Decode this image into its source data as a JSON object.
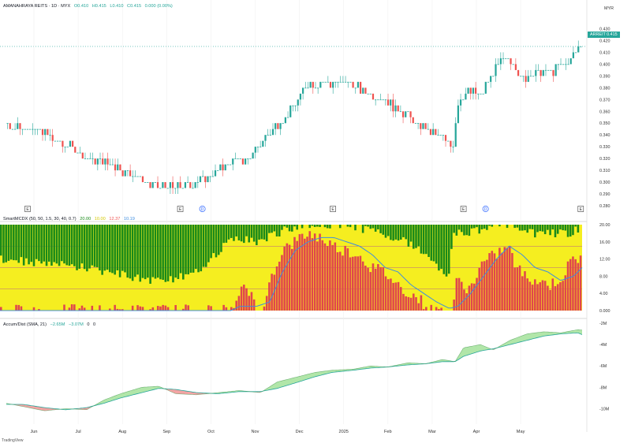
{
  "header": {
    "symbol": "AMANAHRAYA REITS · 1D · MYX",
    "open": "O0.410",
    "high": "H0.415",
    "low": "L0.410",
    "close": "C0.415",
    "change": "0.000 (0.00%)"
  },
  "currency": "MYR",
  "price_badge": {
    "ticker": "ARREIT",
    "value": "0.415"
  },
  "footer_logo": "TradingView",
  "colors": {
    "up": "#26a69a",
    "down": "#ef5350",
    "green_band": "#1a8a1a",
    "yellow_band": "#f5ee20",
    "red_bar": "#e0474c",
    "signal": "#3d8de0",
    "accum_up": "#a8e3a0",
    "accum_down": "#f29a9a"
  },
  "chart_data": [
    {
      "type": "candlestick",
      "ylim": [
        0.28,
        0.43
      ],
      "y_ticks": [
        "0.430",
        "0.420",
        "0.410",
        "0.400",
        "0.390",
        "0.380",
        "0.370",
        "0.360",
        "0.350",
        "0.340",
        "0.330",
        "0.320",
        "0.310",
        "0.300",
        "0.290",
        "0.280"
      ],
      "x_ticks": [
        "Jun",
        "Jul",
        "Aug",
        "Sep",
        "Oct",
        "Nov",
        "Dec",
        "2025",
        "Feb",
        "Mar",
        "Apr",
        "May"
      ],
      "last_price": 0.415,
      "event_markers": [
        {
          "label": "E",
          "month_index": 0.0
        },
        {
          "label": "E",
          "month_index": 3.45
        },
        {
          "label": "D",
          "month_index": 3.95
        },
        {
          "label": "E",
          "month_index": 6.9
        },
        {
          "label": "E",
          "month_index": 9.85
        },
        {
          "label": "D",
          "month_index": 10.35
        },
        {
          "label": "E",
          "month_index": 12.5
        }
      ],
      "close_path": [
        [
          0.0,
          0.349
        ],
        [
          0.3,
          0.347
        ],
        [
          0.6,
          0.345
        ],
        [
          0.9,
          0.342
        ],
        [
          1.2,
          0.333
        ],
        [
          1.5,
          0.33
        ],
        [
          1.8,
          0.32
        ],
        [
          2.1,
          0.318
        ],
        [
          2.4,
          0.317
        ],
        [
          2.7,
          0.31
        ],
        [
          3.0,
          0.305
        ],
        [
          3.3,
          0.298
        ],
        [
          3.6,
          0.296
        ],
        [
          3.9,
          0.296
        ],
        [
          4.2,
          0.296
        ],
        [
          4.5,
          0.3
        ],
        [
          4.8,
          0.306
        ],
        [
          5.1,
          0.312
        ],
        [
          5.4,
          0.32
        ],
        [
          5.7,
          0.318
        ],
        [
          6.0,
          0.332
        ],
        [
          6.3,
          0.345
        ],
        [
          6.6,
          0.355
        ],
        [
          6.9,
          0.372
        ],
        [
          7.2,
          0.385
        ],
        [
          7.5,
          0.383
        ],
        [
          7.8,
          0.384
        ],
        [
          8.1,
          0.384
        ],
        [
          8.4,
          0.378
        ],
        [
          8.7,
          0.372
        ],
        [
          9.0,
          0.368
        ],
        [
          9.3,
          0.362
        ],
        [
          9.6,
          0.352
        ],
        [
          9.9,
          0.345
        ],
        [
          10.2,
          0.34
        ],
        [
          10.5,
          0.332
        ],
        [
          10.6,
          0.33
        ],
        [
          10.65,
          0.366
        ],
        [
          10.9,
          0.378
        ],
        [
          11.2,
          0.372
        ],
        [
          11.5,
          0.392
        ],
        [
          11.8,
          0.405
        ],
        [
          12.0,
          0.402
        ],
        [
          12.2,
          0.385
        ],
        [
          12.4,
          0.392
        ],
        [
          12.7,
          0.394
        ],
        [
          13.0,
          0.395
        ],
        [
          13.3,
          0.402
        ],
        [
          13.6,
          0.415
        ]
      ]
    },
    {
      "type": "bar",
      "title": "SmartMCDX (50, 50, 1.5, 30, 40, 0.7)",
      "legend_values": [
        "20.00",
        "10.00",
        "12.37",
        "10.19"
      ],
      "ylim": [
        0,
        20
      ],
      "y_ticks": [
        "20.00",
        "16.00",
        "12.00",
        "8.00",
        "4.00",
        "0.000"
      ],
      "reference_lines": [
        15,
        10,
        5
      ],
      "green_profile": [
        [
          0.0,
          8
        ],
        [
          1.0,
          9
        ],
        [
          2.0,
          10
        ],
        [
          3.0,
          12
        ],
        [
          3.5,
          13
        ],
        [
          4.5,
          12
        ],
        [
          5.0,
          7
        ],
        [
          5.5,
          3
        ],
        [
          6.0,
          4
        ],
        [
          6.5,
          2
        ],
        [
          7.0,
          0
        ],
        [
          7.5,
          0
        ],
        [
          8.0,
          0
        ],
        [
          8.5,
          1
        ],
        [
          9.0,
          2
        ],
        [
          9.5,
          4
        ],
        [
          10.0,
          7
        ],
        [
          10.5,
          12
        ],
        [
          10.6,
          2
        ],
        [
          11.0,
          2
        ],
        [
          11.5,
          0
        ],
        [
          12.0,
          0
        ],
        [
          12.2,
          2
        ],
        [
          12.8,
          2
        ],
        [
          13.3,
          2
        ],
        [
          13.6,
          1
        ]
      ],
      "red_profile": [
        [
          0.0,
          0
        ],
        [
          5.5,
          0
        ],
        [
          5.6,
          5
        ],
        [
          5.9,
          4
        ],
        [
          6.0,
          0
        ],
        [
          6.2,
          0
        ],
        [
          6.3,
          7
        ],
        [
          6.6,
          14
        ],
        [
          6.9,
          16
        ],
        [
          7.2,
          18
        ],
        [
          7.5,
          17
        ],
        [
          7.8,
          15
        ],
        [
          8.1,
          14
        ],
        [
          8.4,
          13
        ],
        [
          8.7,
          10
        ],
        [
          9.0,
          9
        ],
        [
          9.3,
          6
        ],
        [
          9.6,
          4
        ],
        [
          9.9,
          2
        ],
        [
          10.1,
          0
        ],
        [
          10.6,
          0
        ],
        [
          10.7,
          7
        ],
        [
          11.0,
          5
        ],
        [
          11.3,
          11
        ],
        [
          11.6,
          13
        ],
        [
          11.9,
          15
        ],
        [
          12.1,
          10
        ],
        [
          12.3,
          8
        ],
        [
          12.6,
          7
        ],
        [
          12.9,
          6
        ],
        [
          13.2,
          8
        ],
        [
          13.4,
          12
        ],
        [
          13.6,
          12
        ]
      ],
      "signal_line": [
        [
          0.0,
          0
        ],
        [
          5.4,
          0
        ],
        [
          5.6,
          1
        ],
        [
          6.0,
          1
        ],
        [
          6.3,
          2
        ],
        [
          6.6,
          9
        ],
        [
          6.9,
          14
        ],
        [
          7.2,
          16
        ],
        [
          7.5,
          17
        ],
        [
          7.8,
          17
        ],
        [
          8.1,
          16
        ],
        [
          8.4,
          15
        ],
        [
          8.7,
          13
        ],
        [
          9.0,
          10
        ],
        [
          9.3,
          9
        ],
        [
          9.6,
          6
        ],
        [
          9.9,
          4
        ],
        [
          10.2,
          2
        ],
        [
          10.5,
          0.5
        ],
        [
          10.7,
          1
        ],
        [
          11.0,
          4
        ],
        [
          11.3,
          8
        ],
        [
          11.6,
          12
        ],
        [
          11.9,
          15
        ],
        [
          12.2,
          13
        ],
        [
          12.5,
          10
        ],
        [
          12.8,
          9
        ],
        [
          13.1,
          7
        ],
        [
          13.4,
          8
        ],
        [
          13.6,
          10
        ]
      ]
    },
    {
      "type": "area",
      "title": "Accum/Dist (SMA, 21)",
      "legend_values": [
        "−2.65M",
        "−3.07M",
        "0",
        "0"
      ],
      "ylim": [
        -11,
        -2
      ],
      "y_ticks": [
        "-2M",
        "-4M",
        "-6M",
        "-8M",
        "-10M"
      ],
      "ad_line": [
        [
          0.0,
          -9.5
        ],
        [
          0.4,
          -9.8
        ],
        [
          0.9,
          -10.2
        ],
        [
          1.4,
          -10.0
        ],
        [
          1.9,
          -10.1
        ],
        [
          2.3,
          -9.2
        ],
        [
          2.7,
          -8.6
        ],
        [
          3.2,
          -8.0
        ],
        [
          3.6,
          -7.9
        ],
        [
          4.0,
          -8.6
        ],
        [
          4.5,
          -8.7
        ],
        [
          5.0,
          -8.5
        ],
        [
          5.5,
          -8.3
        ],
        [
          6.0,
          -8.5
        ],
        [
          6.4,
          -7.5
        ],
        [
          6.9,
          -7.0
        ],
        [
          7.3,
          -6.6
        ],
        [
          7.7,
          -6.4
        ],
        [
          8.2,
          -6.3
        ],
        [
          8.6,
          -6.0
        ],
        [
          9.0,
          -6.1
        ],
        [
          9.5,
          -5.7
        ],
        [
          9.9,
          -5.8
        ],
        [
          10.3,
          -5.4
        ],
        [
          10.6,
          -5.6
        ],
        [
          10.8,
          -4.3
        ],
        [
          11.2,
          -4.0
        ],
        [
          11.5,
          -4.5
        ],
        [
          11.9,
          -3.6
        ],
        [
          12.3,
          -3.0
        ],
        [
          12.7,
          -2.8
        ],
        [
          13.1,
          -2.9
        ],
        [
          13.5,
          -2.6
        ],
        [
          13.6,
          -2.65
        ]
      ],
      "sma_line": [
        [
          0.0,
          -9.6
        ],
        [
          0.4,
          -9.6
        ],
        [
          0.9,
          -9.9
        ],
        [
          1.4,
          -10.1
        ],
        [
          1.9,
          -9.9
        ],
        [
          2.3,
          -9.5
        ],
        [
          2.7,
          -9.0
        ],
        [
          3.2,
          -8.5
        ],
        [
          3.6,
          -8.1
        ],
        [
          4.0,
          -8.2
        ],
        [
          4.5,
          -8.5
        ],
        [
          5.0,
          -8.6
        ],
        [
          5.5,
          -8.4
        ],
        [
          6.0,
          -8.4
        ],
        [
          6.4,
          -8.1
        ],
        [
          6.9,
          -7.5
        ],
        [
          7.3,
          -7.0
        ],
        [
          7.7,
          -6.6
        ],
        [
          8.2,
          -6.4
        ],
        [
          8.6,
          -6.2
        ],
        [
          9.0,
          -6.1
        ],
        [
          9.5,
          -5.9
        ],
        [
          9.9,
          -5.8
        ],
        [
          10.3,
          -5.6
        ],
        [
          10.6,
          -5.6
        ],
        [
          10.8,
          -5.1
        ],
        [
          11.2,
          -4.6
        ],
        [
          11.5,
          -4.4
        ],
        [
          11.9,
          -4.0
        ],
        [
          12.3,
          -3.6
        ],
        [
          12.7,
          -3.2
        ],
        [
          13.1,
          -3.0
        ],
        [
          13.5,
          -2.9
        ],
        [
          13.6,
          -3.07
        ]
      ]
    }
  ]
}
